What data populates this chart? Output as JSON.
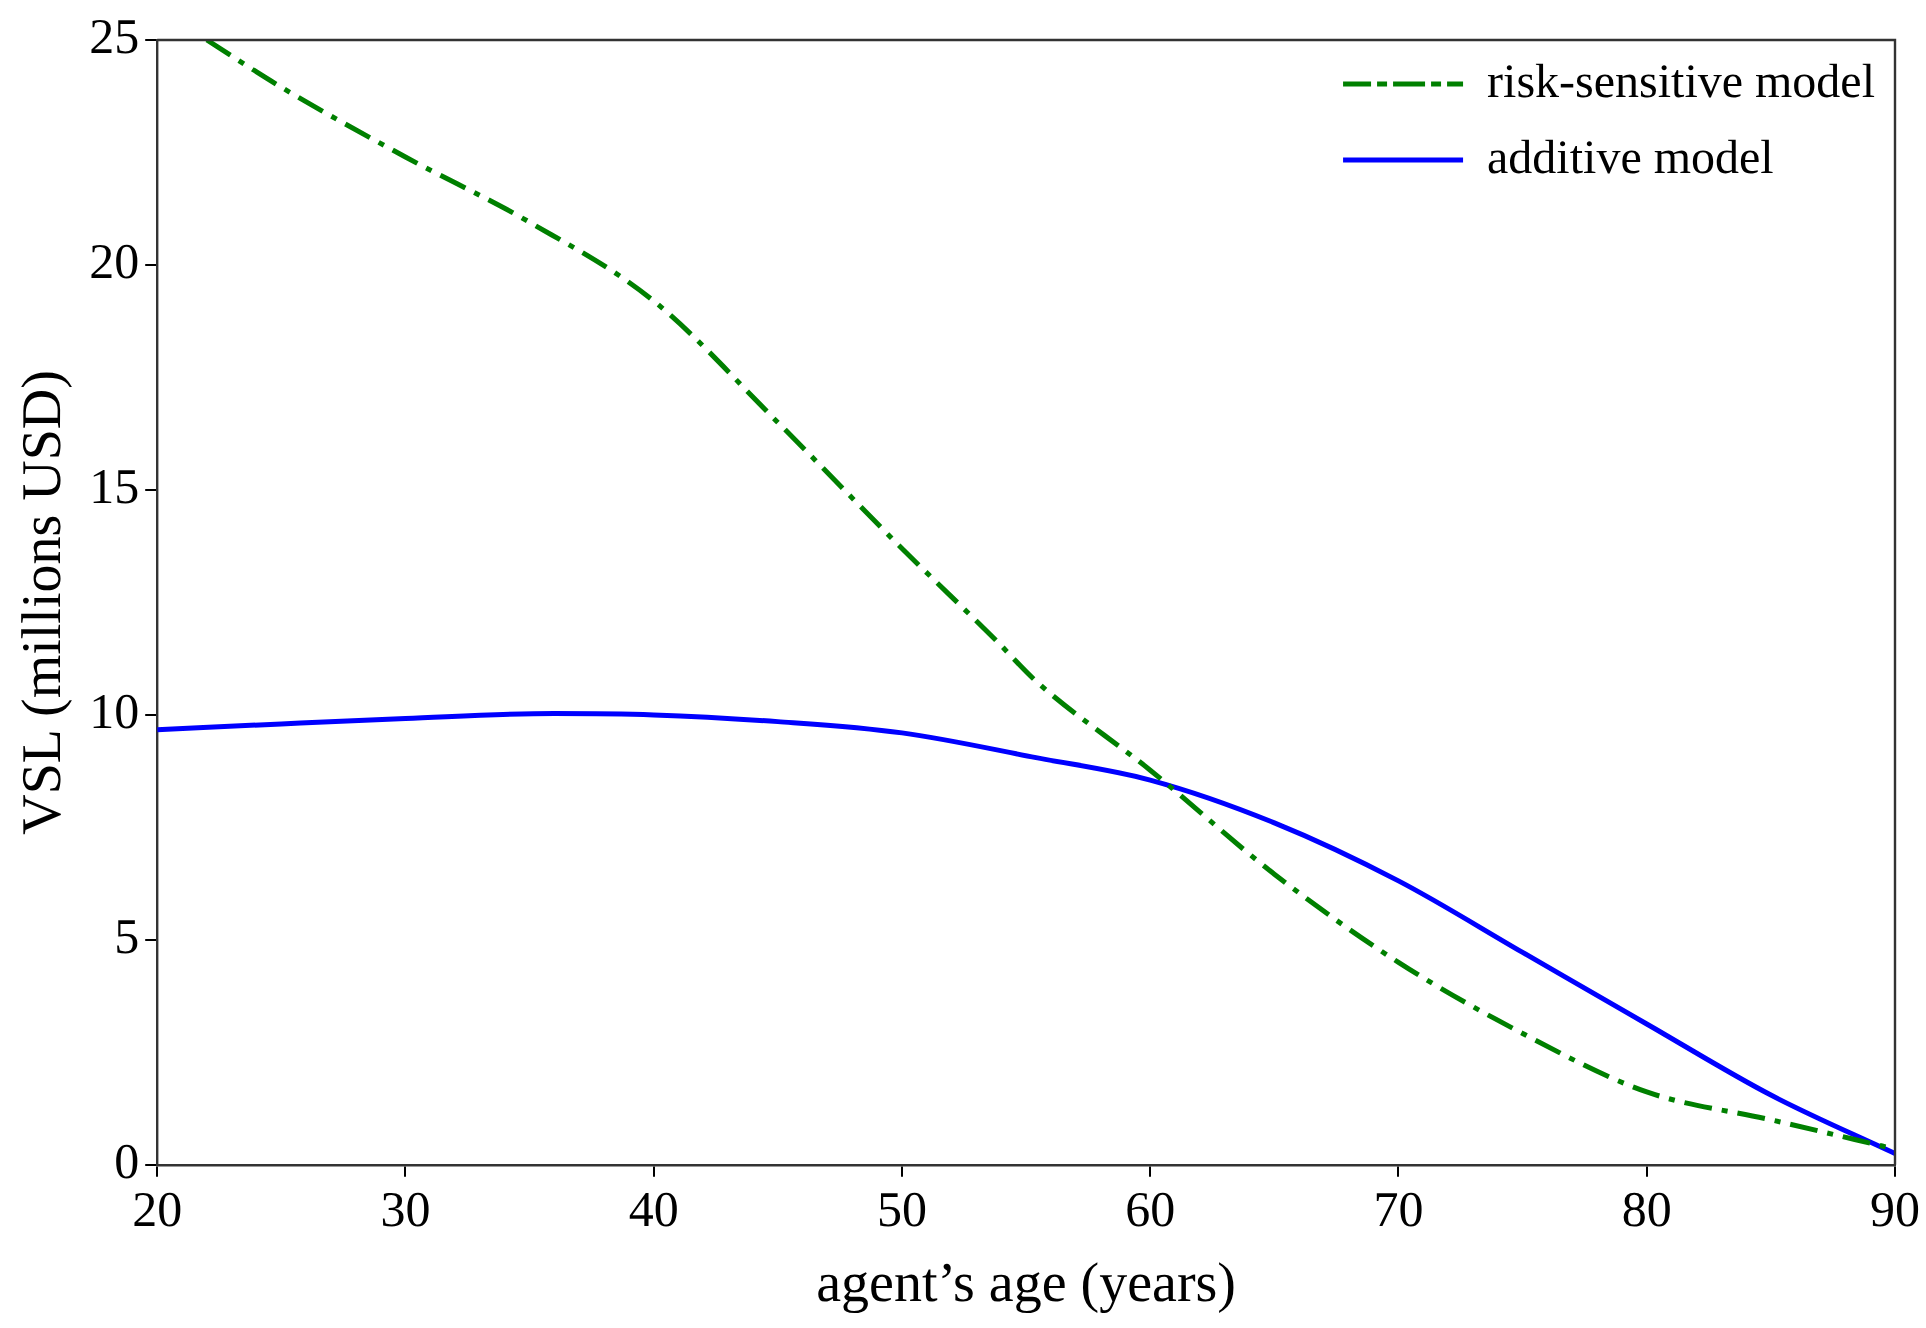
{
  "chart_data": {
    "type": "line",
    "xlabel": "agent’s age (years)",
    "ylabel": "VSL (millions USD)",
    "xlim": [
      20,
      90
    ],
    "xticks": [
      20,
      30,
      40,
      50,
      60,
      70,
      80,
      90
    ],
    "ylim": [
      0,
      25
    ],
    "yticks": [
      0,
      5,
      10,
      15,
      20,
      25
    ],
    "grid": false,
    "legend": "top right",
    "marker": "none",
    "series": [
      {
        "name": "risk-sensitive model",
        "color": "#008000",
        "line_style": "dashdot",
        "x": [
          22,
          25,
          30,
          35,
          40,
          45,
          50,
          53.8,
          55.4,
          60,
          65,
          70,
          75,
          80,
          85,
          90
        ],
        "values": [
          25,
          23.95,
          22.4,
          20.95,
          19.2,
          16.5,
          13.7,
          11.65,
          10.75,
          8.77,
          6.46,
          4.5,
          2.92,
          1.62,
          1.0,
          0.35
        ]
      },
      {
        "name": "additive model",
        "color": "#0000ff",
        "line_style": "solid",
        "x": [
          20,
          25,
          30,
          36,
          40,
          45,
          50,
          55.4,
          60,
          65,
          70,
          75,
          80,
          85,
          90
        ],
        "values": [
          9.67,
          9.8,
          9.92,
          10.03,
          10.0,
          9.85,
          9.6,
          9.05,
          8.55,
          7.6,
          6.31,
          4.72,
          3.13,
          1.55,
          0.25
        ]
      }
    ]
  }
}
